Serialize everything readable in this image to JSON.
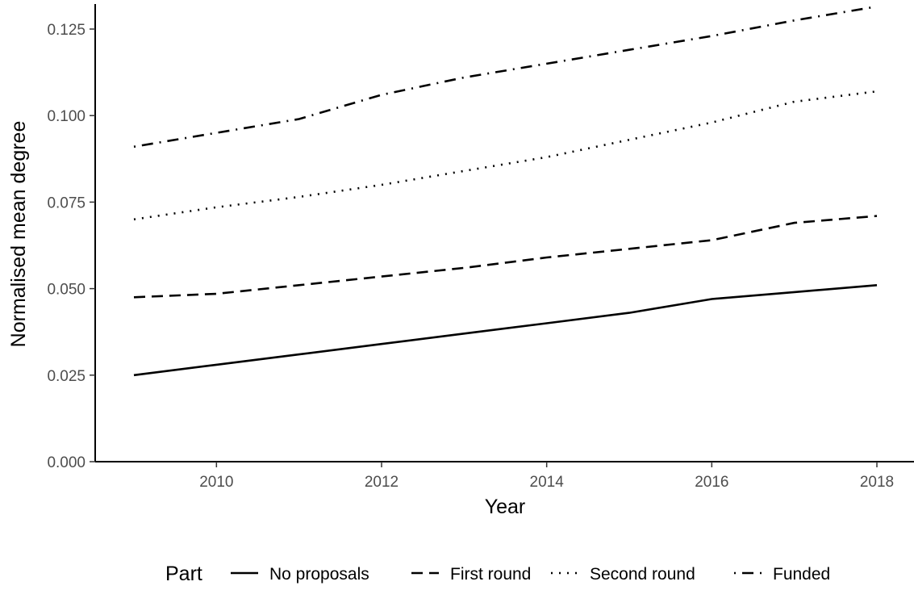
{
  "chart_data": {
    "type": "line",
    "xlabel": "Year",
    "ylabel": "Normalised mean degree",
    "xlim": [
      2008.95,
      2018.05
    ],
    "ylim": [
      0,
      0.132
    ],
    "x_ticks": [
      2010,
      2012,
      2014,
      2016,
      2018
    ],
    "y_ticks": [
      0.0,
      0.025,
      0.05,
      0.075,
      0.1,
      0.125
    ],
    "x_tick_labels": [
      "2010",
      "2012",
      "2014",
      "2016",
      "2018"
    ],
    "y_tick_labels": [
      "0.000",
      "0.025",
      "0.050",
      "0.075",
      "0.100",
      "0.125"
    ],
    "x": [
      2009,
      2010,
      2011,
      2012,
      2013,
      2014,
      2015,
      2016,
      2017,
      2018
    ],
    "series": [
      {
        "name": "No proposals",
        "style": "solid",
        "values": [
          0.025,
          0.028,
          0.031,
          0.034,
          0.037,
          0.04,
          0.043,
          0.047,
          0.049,
          0.051
        ]
      },
      {
        "name": "First round",
        "style": "dashed",
        "values": [
          0.0475,
          0.0485,
          0.051,
          0.0535,
          0.056,
          0.059,
          0.0615,
          0.064,
          0.069,
          0.071
        ]
      },
      {
        "name": "Second round",
        "style": "dotted",
        "values": [
          0.07,
          0.0735,
          0.0765,
          0.08,
          0.084,
          0.088,
          0.093,
          0.098,
          0.104,
          0.107
        ]
      },
      {
        "name": "Funded",
        "style": "dotdash",
        "values": [
          0.091,
          0.095,
          0.099,
          0.106,
          0.111,
          0.115,
          0.119,
          0.123,
          0.1275,
          0.1315
        ]
      }
    ],
    "legend_title": "Part",
    "legend_position": "bottom",
    "grid": false,
    "colors": {
      "line": "#000000",
      "tick_text": "#4d4d4d",
      "axis": "#000000"
    }
  }
}
